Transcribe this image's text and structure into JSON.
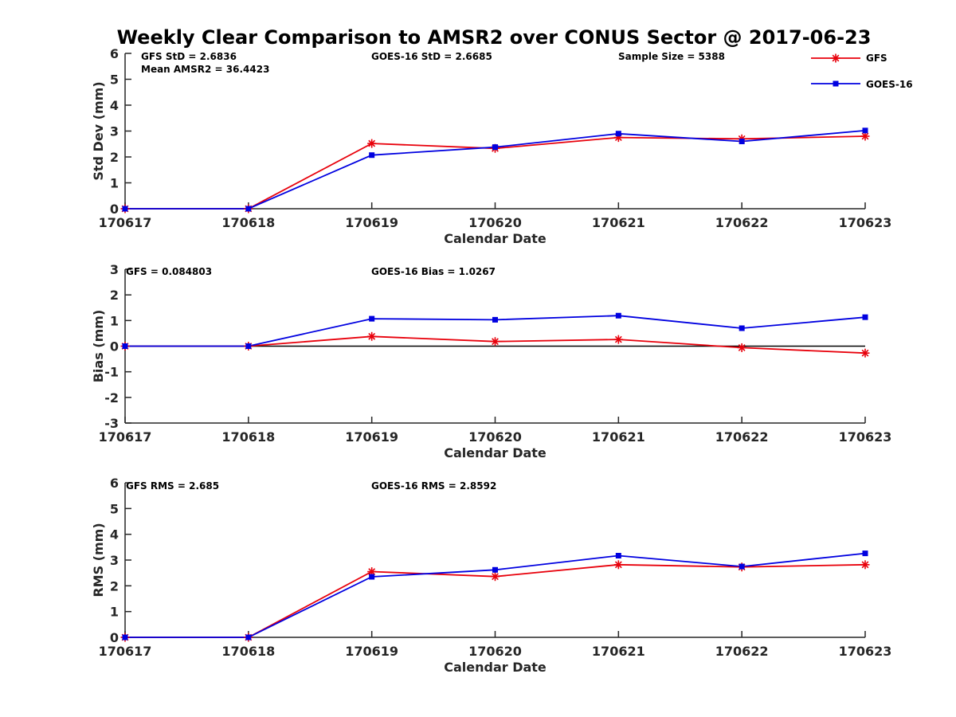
{
  "figure": {
    "title": "Weekly Clear Comparison to AMSR2 over CONUS Sector @ 2017-06-23"
  },
  "colors": {
    "gfs": "#e8000b",
    "goes": "#0000e0",
    "axis": "#262626",
    "zero_line": "#000000"
  },
  "legend": {
    "entries": [
      {
        "label": "GFS",
        "marker": "asterisk",
        "color": "#e8000b"
      },
      {
        "label": "GOES-16",
        "marker": "square",
        "color": "#0000e0"
      }
    ]
  },
  "chart_data": [
    {
      "type": "line",
      "id": "stddev",
      "xlabel": "Calendar Date",
      "ylabel": "Std Dev (mm)",
      "ylim": [
        0,
        6
      ],
      "yticks": [
        0,
        1,
        2,
        3,
        4,
        5,
        6
      ],
      "categories": [
        "170617",
        "170618",
        "170619",
        "170620",
        "170621",
        "170622",
        "170623"
      ],
      "zero_line": false,
      "series": [
        {
          "name": "GFS",
          "values": [
            0,
            0,
            2.52,
            2.33,
            2.75,
            2.7,
            2.8
          ]
        },
        {
          "name": "GOES-16",
          "values": [
            0,
            0,
            2.07,
            2.38,
            2.9,
            2.6,
            3.02
          ]
        }
      ],
      "annotations": [
        {
          "text": "GFS StD = 2.6836"
        },
        {
          "text": "Mean AMSR2 = 36.4423"
        },
        {
          "text": "GOES-16 StD = 2.6685"
        },
        {
          "text": "Sample Size = 5388"
        }
      ]
    },
    {
      "type": "line",
      "id": "bias",
      "xlabel": "Calendar Date",
      "ylabel": "Bias (mm)",
      "ylim": [
        -3,
        3
      ],
      "yticks": [
        -3,
        -2,
        -1,
        0,
        1,
        2,
        3
      ],
      "categories": [
        "170617",
        "170618",
        "170619",
        "170620",
        "170621",
        "170622",
        "170623"
      ],
      "zero_line": true,
      "series": [
        {
          "name": "GFS",
          "values": [
            0,
            0,
            0.38,
            0.18,
            0.26,
            -0.06,
            -0.27
          ]
        },
        {
          "name": "GOES-16",
          "values": [
            0,
            0,
            1.07,
            1.03,
            1.19,
            0.7,
            1.13
          ]
        }
      ],
      "annotations": [
        {
          "text": "GFS = 0.084803"
        },
        {
          "text": "GOES-16 Bias  = 1.0267"
        }
      ]
    },
    {
      "type": "line",
      "id": "rms",
      "xlabel": "Calendar Date",
      "ylabel": "RMS (mm)",
      "ylim": [
        0,
        6
      ],
      "yticks": [
        0,
        1,
        2,
        3,
        4,
        5,
        6
      ],
      "categories": [
        "170617",
        "170618",
        "170619",
        "170620",
        "170621",
        "170622",
        "170623"
      ],
      "zero_line": false,
      "series": [
        {
          "name": "GFS",
          "values": [
            0,
            0,
            2.55,
            2.36,
            2.82,
            2.73,
            2.82
          ]
        },
        {
          "name": "GOES-16",
          "values": [
            0,
            0,
            2.35,
            2.62,
            3.17,
            2.75,
            3.26
          ]
        }
      ],
      "annotations": [
        {
          "text": "GFS RMS = 2.685"
        },
        {
          "text": "GOES-16 RMS = 2.8592"
        }
      ]
    }
  ]
}
